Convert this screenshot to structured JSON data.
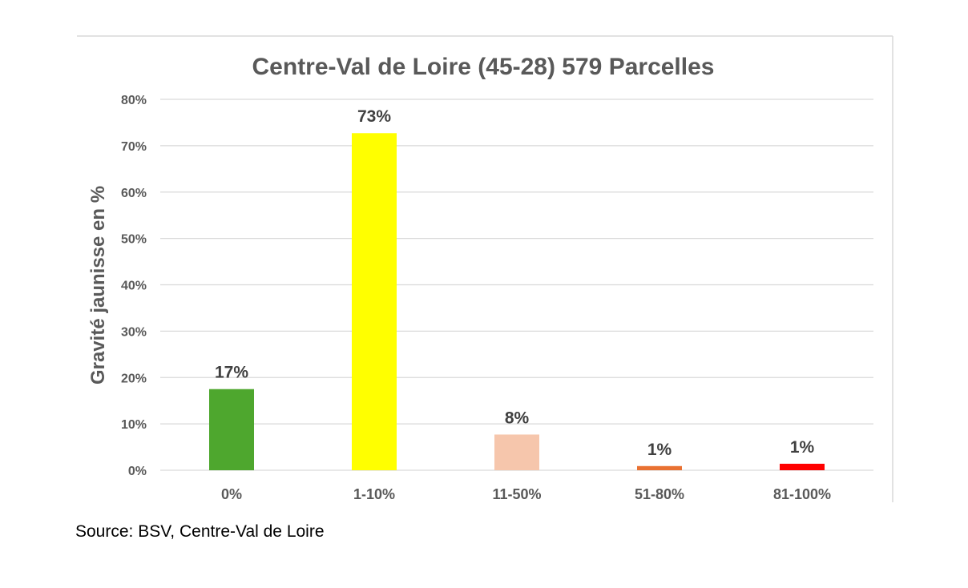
{
  "chart_data": {
    "type": "bar",
    "title": "Centre-Val de Loire (45-28) 579 Parcelles",
    "xlabel": "",
    "ylabel": "Gravité jaunisse en %",
    "categories": [
      "0%",
      "1-10%",
      "11-50%",
      "51-80%",
      "81-100%"
    ],
    "values": [
      17.5,
      72.7,
      7.7,
      0.9,
      1.4
    ],
    "data_labels": [
      "17%",
      "73%",
      "8%",
      "1%",
      "1%"
    ],
    "colors": [
      "#4ea72e",
      "#ffff00",
      "#f6c6ac",
      "#e97132",
      "#ff0000"
    ],
    "ylim": [
      0,
      80
    ],
    "yticks": [
      0,
      10,
      20,
      30,
      40,
      50,
      60,
      70,
      80
    ],
    "ytick_labels": [
      "0%",
      "10%",
      "20%",
      "30%",
      "40%",
      "50%",
      "60%",
      "70%",
      "80%"
    ],
    "grid": true,
    "legend": "none"
  },
  "source_text": "Source: BSV, Centre-Val de Loire"
}
